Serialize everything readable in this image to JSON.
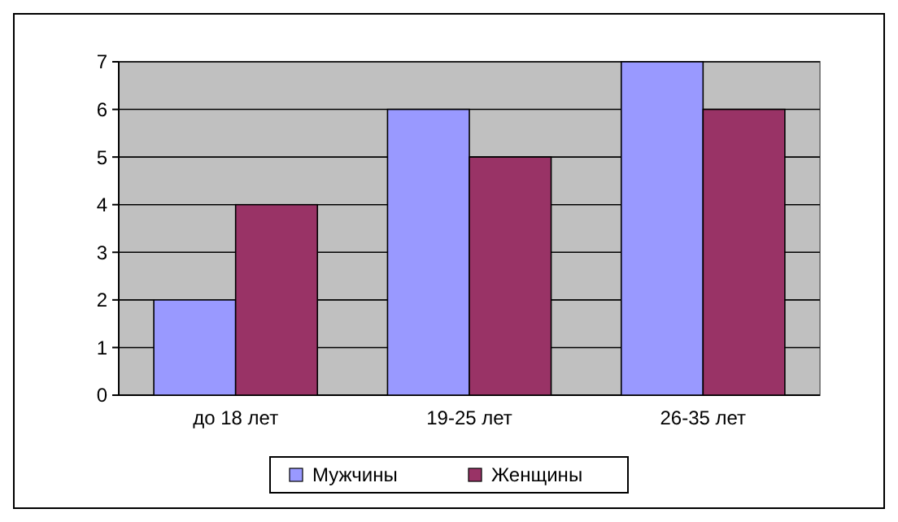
{
  "chart_data": {
    "type": "bar",
    "categories": [
      "до 18 лет",
      "19-25 лет",
      "26-35 лет"
    ],
    "series": [
      {
        "name": "Мужчины",
        "color": "#9999ff",
        "values": [
          2,
          6,
          7
        ]
      },
      {
        "name": "Женщины",
        "color": "#993366",
        "values": [
          4,
          5,
          6
        ]
      }
    ],
    "ylim": [
      0,
      7
    ],
    "yticks": [
      0,
      1,
      2,
      3,
      4,
      5,
      6,
      7
    ],
    "grid": "y",
    "legend": "bottom"
  }
}
